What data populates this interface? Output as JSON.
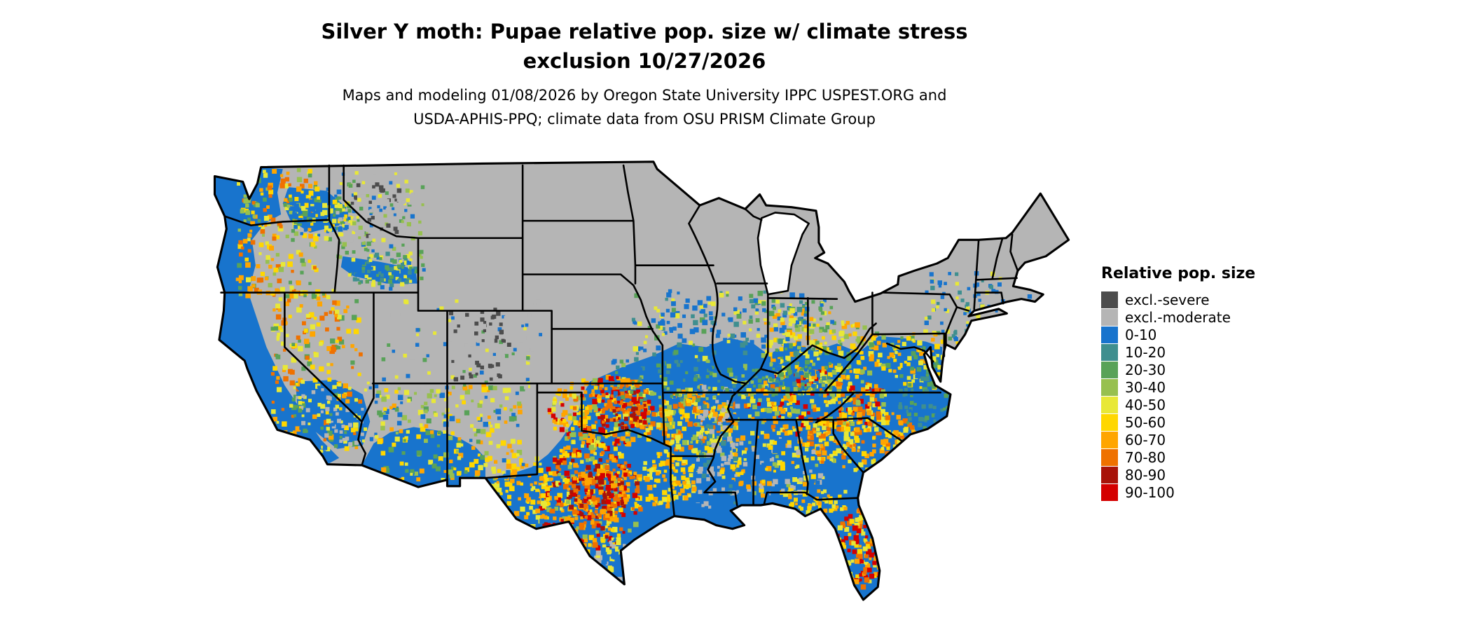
{
  "header": {
    "title_line1": "Silver Y moth: Pupae relative pop. size w/ climate stress",
    "title_line2": "exclusion 10/27/2026",
    "subtitle_line1": "Maps and modeling 01/08/2026 by Oregon State University IPPC USPEST.ORG and",
    "subtitle_line2": "USDA-APHIS-PPQ; climate data from OSU PRISM Climate Group"
  },
  "map": {
    "colors": {
      "background": "#ffffff",
      "state_border": "#000000"
    }
  },
  "legend": {
    "title": "Relative pop. size",
    "items": [
      {
        "label": "excl.-severe",
        "color": "#4d4d4d"
      },
      {
        "label": "excl.-moderate",
        "color": "#b5b5b5"
      },
      {
        "label": "0-10",
        "color": "#1874cd"
      },
      {
        "label": "10-20",
        "color": "#3f8f8f"
      },
      {
        "label": "20-30",
        "color": "#58a258"
      },
      {
        "label": "30-40",
        "color": "#97c04f"
      },
      {
        "label": "40-50",
        "color": "#e8e837"
      },
      {
        "label": "50-60",
        "color": "#ffd700"
      },
      {
        "label": "60-70",
        "color": "#ffa500"
      },
      {
        "label": "70-80",
        "color": "#ef7100"
      },
      {
        "label": "80-90",
        "color": "#a81309"
      },
      {
        "label": "90-100",
        "color": "#d40000"
      }
    ]
  }
}
